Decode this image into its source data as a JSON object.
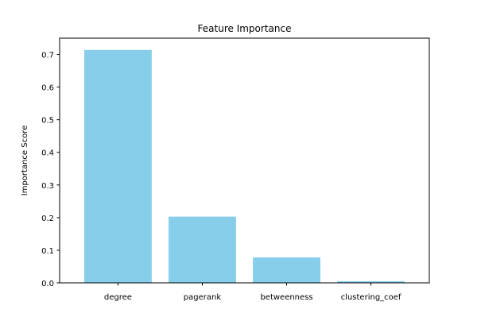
{
  "chart_data": {
    "type": "bar",
    "title": "Feature Importance",
    "xlabel": "",
    "ylabel": "Importance Score",
    "categories": [
      "degree",
      "pagerank",
      "betweenness",
      "clustering_coef"
    ],
    "values": [
      0.714,
      0.203,
      0.078,
      0.005
    ],
    "ylim": [
      0,
      0.75
    ],
    "yticks": [
      0.0,
      0.1,
      0.2,
      0.3,
      0.4,
      0.5,
      0.6,
      0.7
    ],
    "ytick_labels": [
      "0.0",
      "0.1",
      "0.2",
      "0.3",
      "0.4",
      "0.5",
      "0.6",
      "0.7"
    ],
    "bar_color": "#87ceeb",
    "grid": false,
    "legend": "none"
  }
}
